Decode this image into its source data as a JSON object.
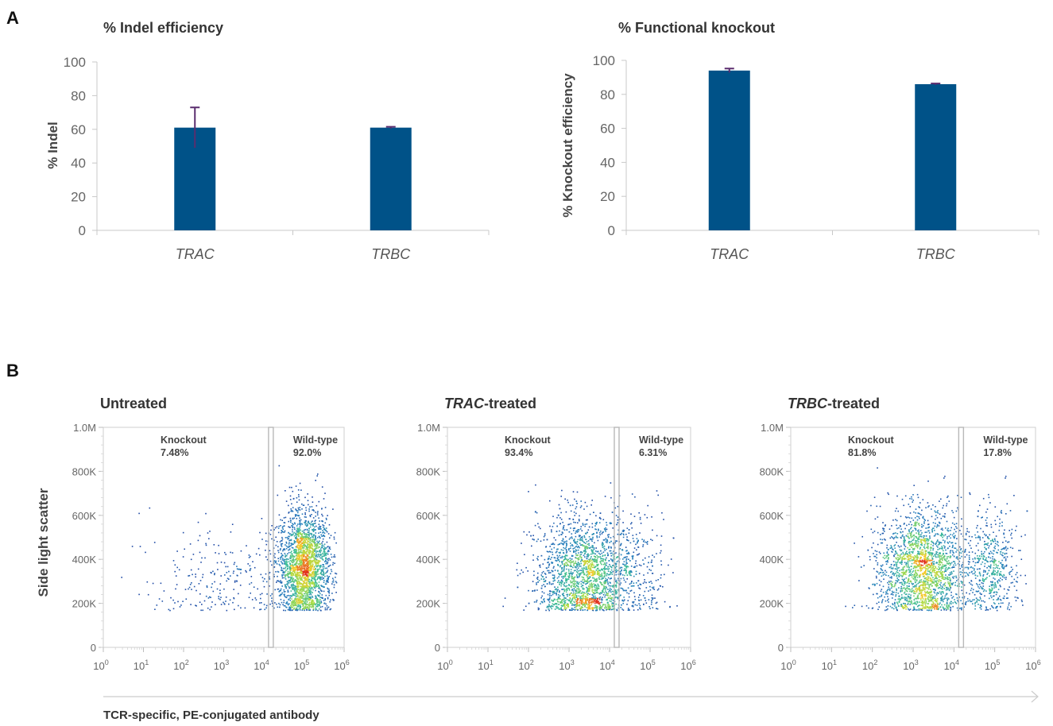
{
  "panel_a_label": "A",
  "panel_b_label": "B",
  "chart_data": [
    {
      "type": "bar",
      "title": "% Indel efficiency",
      "ylabel": "% Indel",
      "xlabel": "",
      "categories": [
        "TRAC",
        "TRBC"
      ],
      "values": [
        61,
        61
      ],
      "error": [
        12,
        0.5
      ],
      "ylim": [
        0,
        100
      ],
      "yticks": [
        "0",
        "20",
        "40",
        "60",
        "80",
        "100"
      ],
      "bar_color": "#005288",
      "error_color": "#5a2d6e"
    },
    {
      "type": "bar",
      "title": "% Functional knockout",
      "ylabel": "% Knockout efficiency",
      "xlabel": "",
      "categories": [
        "TRAC",
        "TRBC"
      ],
      "values": [
        94,
        86
      ],
      "error": [
        1.2,
        0.4
      ],
      "ylim": [
        0,
        100
      ],
      "yticks": [
        "0",
        "20",
        "40",
        "60",
        "80",
        "100"
      ],
      "bar_color": "#005288",
      "error_color": "#5a2d6e"
    },
    {
      "type": "scatter",
      "title_italic": "",
      "title_rest": "Untreated",
      "knockout_label": "Knockout",
      "knockout_pct": "7.48%",
      "wildtype_label": "Wild-type",
      "wildtype_pct": "92.0%",
      "x_scale": "log",
      "xlim": [
        1,
        1000000
      ],
      "ylim": [
        0,
        1000000
      ],
      "gate_x": 15000,
      "population": [
        {
          "x_log10_center": 5.0,
          "y_center": 370000,
          "x_log10_sd": 0.32,
          "y_sd": 110000,
          "weight": 0.9
        },
        {
          "x_log10_center": 3.0,
          "y_center": 300000,
          "x_log10_sd": 0.9,
          "y_sd": 90000,
          "weight": 0.1
        }
      ]
    },
    {
      "type": "scatter",
      "title_italic": "TRAC",
      "title_rest": "-treated",
      "knockout_label": "Knockout",
      "knockout_pct": "93.4%",
      "wildtype_label": "Wild-type",
      "wildtype_pct": "6.31%",
      "x_scale": "log",
      "xlim": [
        1,
        1000000
      ],
      "ylim": [
        0,
        1000000
      ],
      "gate_x": 15000,
      "population": [
        {
          "x_log10_center": 3.4,
          "y_center": 330000,
          "x_log10_sd": 0.6,
          "y_sd": 110000,
          "weight": 0.93
        },
        {
          "x_log10_center": 4.7,
          "y_center": 360000,
          "x_log10_sd": 0.4,
          "y_sd": 120000,
          "weight": 0.07
        }
      ]
    },
    {
      "type": "scatter",
      "title_italic": "TRBC",
      "title_rest": "-treated",
      "knockout_label": "Knockout",
      "knockout_pct": "81.8%",
      "wildtype_label": "Wild-type",
      "wildtype_pct": "17.8%",
      "x_scale": "log",
      "xlim": [
        1,
        1000000
      ],
      "ylim": [
        0,
        1000000
      ],
      "gate_x": 15000,
      "population": [
        {
          "x_log10_center": 3.2,
          "y_center": 360000,
          "x_log10_sd": 0.55,
          "y_sd": 110000,
          "weight": 0.8
        },
        {
          "x_log10_center": 4.9,
          "y_center": 360000,
          "x_log10_sd": 0.35,
          "y_sd": 110000,
          "weight": 0.2
        }
      ]
    }
  ],
  "flow": {
    "y_ticks": [
      "0",
      "200K",
      "400K",
      "600K",
      "800K",
      "1.0M"
    ],
    "x_ticks_base": "10",
    "x_ticks_exp": [
      "0",
      "1",
      "2",
      "3",
      "4",
      "5",
      "6"
    ],
    "ylabel": "Side light scatter",
    "xlabel": "TCR-specific, PE-conjugated antibody"
  }
}
